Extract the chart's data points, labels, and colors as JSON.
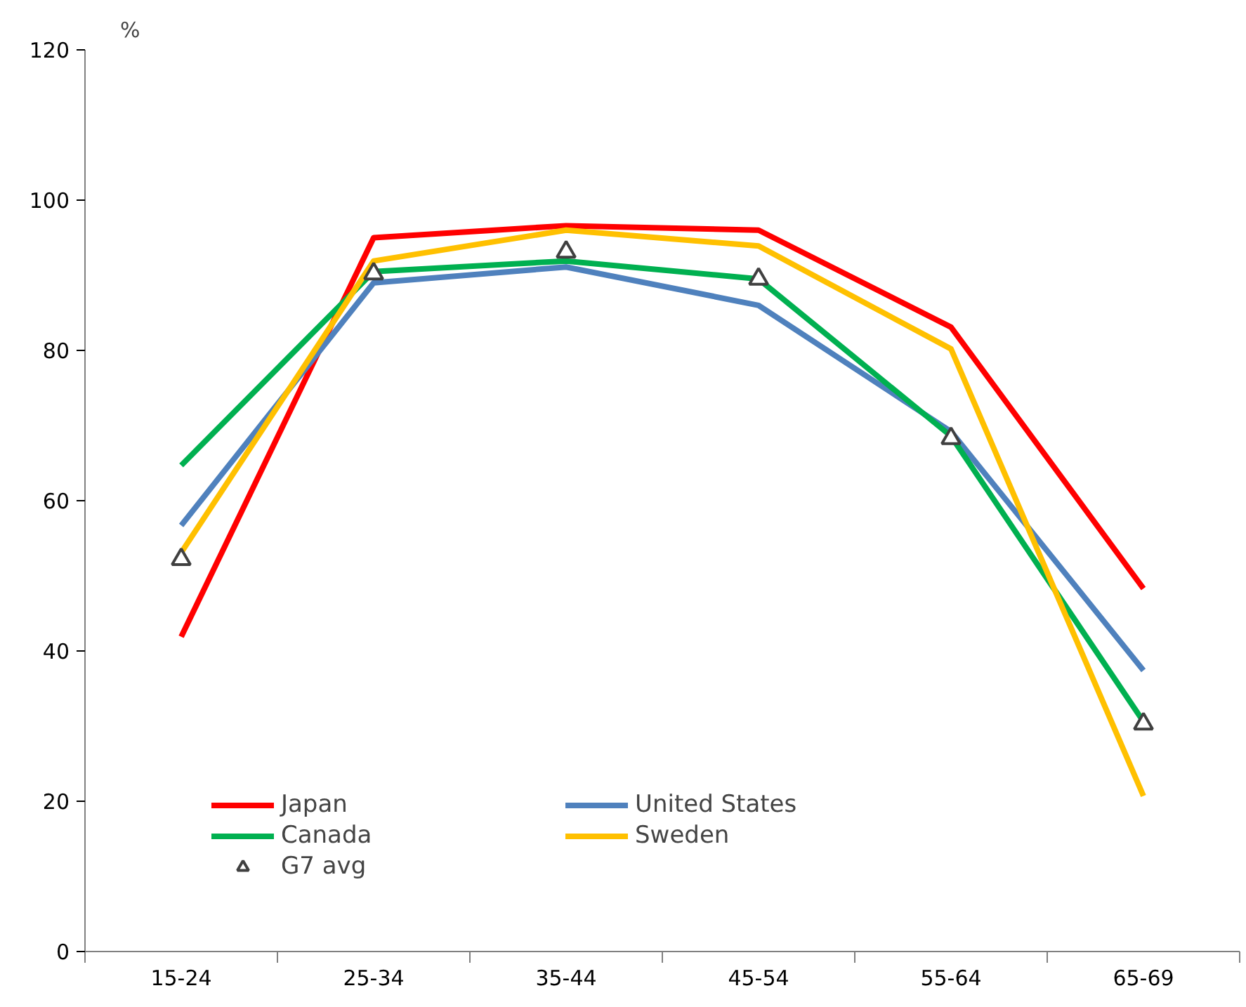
{
  "chart_data": {
    "type": "line",
    "ylabel": "%",
    "categories": [
      "15-24",
      "25-34",
      "35-44",
      "45-54",
      "55-64",
      "65-69"
    ],
    "ylim": [
      0,
      120
    ],
    "yticks": [
      0,
      20,
      40,
      60,
      80,
      100,
      120
    ],
    "grid": false,
    "legend": "bottom left",
    "series": [
      {
        "name": "Japan",
        "color": "#ff0000",
        "values": [
          41.9,
          95.0,
          96.6,
          96.0,
          83.1,
          48.3
        ]
      },
      {
        "name": "United States",
        "color": "#4f81bd",
        "values": [
          56.7,
          89.0,
          91.1,
          86.0,
          69.2,
          37.4
        ]
      },
      {
        "name": "Canada",
        "color": "#00b050",
        "values": [
          64.7,
          90.5,
          91.9,
          89.5,
          68.6,
          30.6
        ]
      },
      {
        "name": "Sweden",
        "color": "#ffc000",
        "values": [
          53.1,
          91.9,
          96.0,
          93.9,
          80.2,
          20.7
        ]
      },
      {
        "name": "G7 avg",
        "type": "scatter",
        "marker": "triangle",
        "color": "#404040",
        "values": [
          52.2,
          90.2,
          93.1,
          89.5,
          68.3,
          30.3
        ]
      }
    ]
  }
}
